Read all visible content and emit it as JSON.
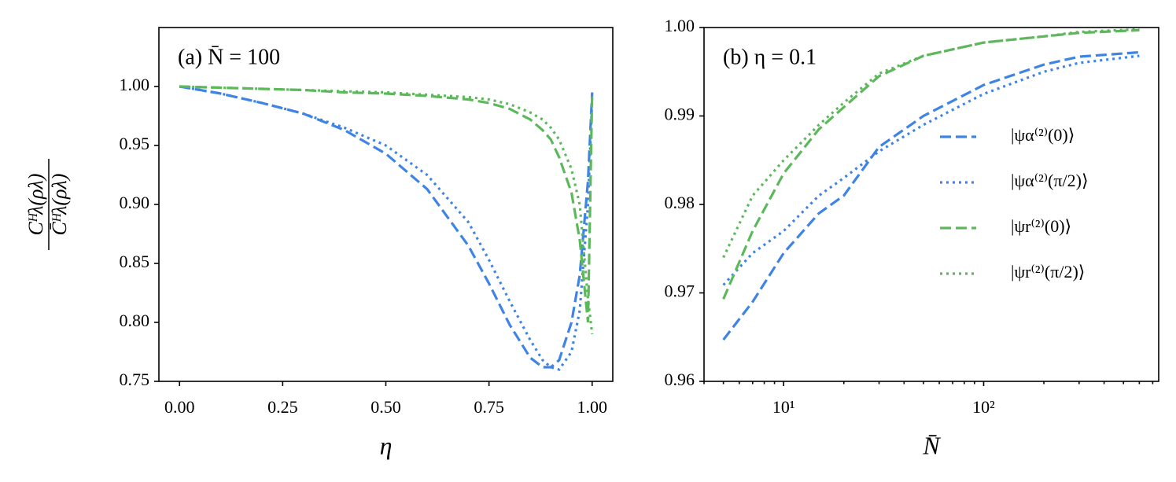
{
  "chart_data": [
    {
      "type": "line",
      "annotation": "(a) N̄ = 100",
      "xlabel": "η",
      "ylabel": {
        "numerator": "Cᴴλ(ρλ)",
        "denominator": "C̄ᴴλ(ρλ)"
      },
      "x": [
        0,
        0.1,
        0.2,
        0.3,
        0.4,
        0.5,
        0.6,
        0.7,
        0.75,
        0.8,
        0.85,
        0.88,
        0.9,
        0.92,
        0.95,
        0.97,
        0.99,
        1.0
      ],
      "xlim": [
        -0.05,
        1.05
      ],
      "xticks": [
        {
          "value": 0,
          "label": "0.00"
        },
        {
          "value": 0.25,
          "label": "0.25"
        },
        {
          "value": 0.5,
          "label": "0.50"
        },
        {
          "value": 0.75,
          "label": "0.75"
        },
        {
          "value": 1,
          "label": "1.00"
        }
      ],
      "ylim": [
        0.75,
        1.05
      ],
      "yticks": [
        0.75,
        {
          "value": 0.8,
          "label": "0.80"
        },
        0.85,
        {
          "value": 0.9,
          "label": "0.90"
        },
        0.95,
        {
          "value": 1,
          "label": "1.00"
        }
      ],
      "series": [
        {
          "color": "#3f84e5",
          "dash": "dashed",
          "values": [
            1.0,
            0.994,
            0.986,
            0.977,
            0.963,
            0.943,
            0.913,
            0.865,
            0.833,
            0.798,
            0.77,
            0.762,
            0.762,
            0.768,
            0.8,
            0.84,
            0.92,
            0.995
          ]
        },
        {
          "color": "#3f84e5",
          "dash": "dotted",
          "values": [
            1.0,
            0.994,
            0.986,
            0.977,
            0.965,
            0.95,
            0.925,
            0.885,
            0.853,
            0.818,
            0.785,
            0.768,
            0.762,
            0.76,
            0.775,
            0.81,
            0.9,
            0.99
          ]
        },
        {
          "color": "#5db85c",
          "dash": "dashed",
          "values": [
            1.0,
            0.999,
            0.998,
            0.997,
            0.995,
            0.994,
            0.992,
            0.989,
            0.986,
            0.981,
            0.972,
            0.963,
            0.955,
            0.94,
            0.91,
            0.87,
            0.8,
            0.995
          ]
        },
        {
          "color": "#5db85c",
          "dash": "dotted",
          "values": [
            1.0,
            0.999,
            0.998,
            0.997,
            0.996,
            0.995,
            0.993,
            0.991,
            0.989,
            0.985,
            0.978,
            0.972,
            0.965,
            0.955,
            0.93,
            0.9,
            0.82,
            0.79
          ]
        }
      ]
    },
    {
      "type": "line",
      "annotation": "(b) η = 0.1",
      "xlabel": "N̄",
      "xscale": "log",
      "x": [
        5,
        7,
        10,
        15,
        20,
        30,
        50,
        100,
        200,
        300,
        600
      ],
      "xlim": [
        4,
        750
      ],
      "xticks": [
        {
          "value": 10,
          "label": "10¹"
        },
        {
          "value": 100,
          "label": "10²"
        }
      ],
      "xminorticks": [
        4,
        5,
        6,
        7,
        8,
        9,
        20,
        30,
        40,
        50,
        60,
        70,
        80,
        90,
        200,
        300,
        400,
        500,
        600,
        700
      ],
      "ylim": [
        0.96,
        1.0
      ],
      "yticks": [
        0.96,
        0.97,
        0.98,
        0.99,
        {
          "value": 1,
          "label": "1.00"
        }
      ],
      "legend": "center right",
      "series": [
        {
          "name": "|ψα⁽²⁾(0)⟩",
          "color": "#3f84e5",
          "dash": "dashed",
          "values": [
            0.9647,
            0.969,
            0.9745,
            0.979,
            0.981,
            0.9865,
            0.99,
            0.9935,
            0.9958,
            0.9967,
            0.9972
          ]
        },
        {
          "name": "|ψα⁽²⁾(π/2)⟩",
          "color": "#3f84e5",
          "dash": "dotted",
          "values": [
            0.9709,
            0.9745,
            0.977,
            0.981,
            0.983,
            0.986,
            0.989,
            0.9925,
            0.995,
            0.996,
            0.9968
          ]
        },
        {
          "name": "|ψr⁽²⁾(0)⟩",
          "color": "#5db85c",
          "dash": "dashed",
          "values": [
            0.9693,
            0.977,
            0.9835,
            0.9885,
            0.991,
            0.9945,
            0.9968,
            0.9983,
            0.999,
            0.9994,
            0.9997
          ]
        },
        {
          "name": "|ψr⁽²⁾(π/2)⟩",
          "color": "#5db85c",
          "dash": "dotted",
          "values": [
            0.974,
            0.981,
            0.985,
            0.989,
            0.9915,
            0.9948,
            0.9968,
            0.9983,
            0.999,
            0.9995,
            0.9998
          ]
        }
      ]
    }
  ]
}
